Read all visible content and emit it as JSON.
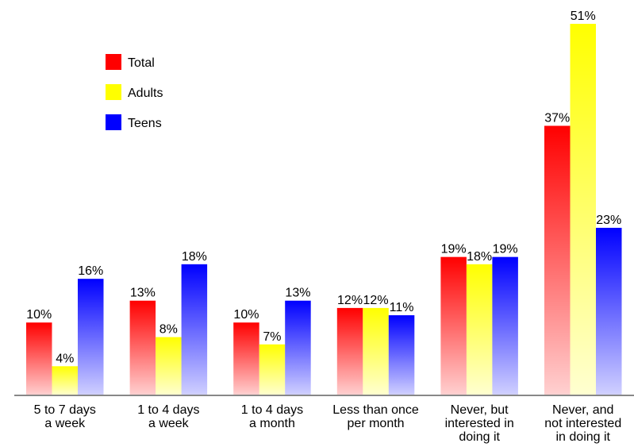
{
  "chart_data": {
    "type": "bar",
    "categories": [
      [
        "5 to 7 days",
        "a week"
      ],
      [
        "1 to 4 days",
        "a week"
      ],
      [
        "1 to 4 days",
        "a month"
      ],
      [
        "Less than once",
        "per month"
      ],
      [
        "Never, but",
        "interested in",
        "doing it"
      ],
      [
        "Never, and",
        "not interested",
        "in doing it"
      ]
    ],
    "series": [
      {
        "name": "Total",
        "color": "#ff0000",
        "values": [
          10,
          13,
          10,
          12,
          19,
          37
        ]
      },
      {
        "name": "Adults",
        "color": "#ffff00",
        "values": [
          4,
          8,
          7,
          12,
          18,
          51
        ]
      },
      {
        "name": "Teens",
        "color": "#0000ff",
        "values": [
          16,
          18,
          13,
          11,
          19,
          23
        ]
      }
    ],
    "value_suffix": "%",
    "ylim": [
      0,
      51
    ],
    "legend_position": "top-left",
    "grid": false,
    "bar_fill": "vertical gradient, saturated at top fading to pale at bottom"
  }
}
